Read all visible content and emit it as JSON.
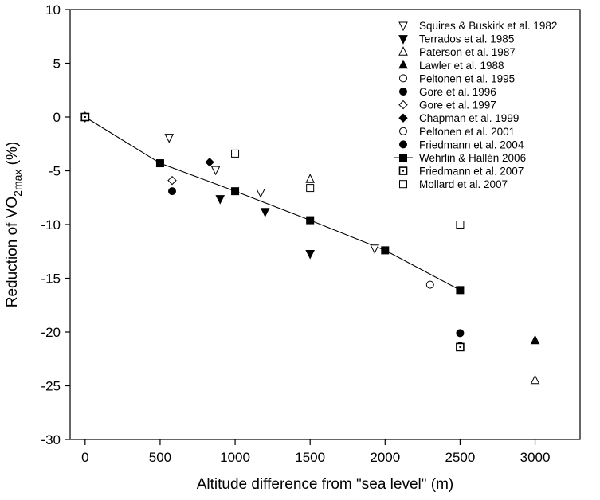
{
  "chart_data": {
    "type": "scatter",
    "title": "",
    "xlabel": "Altitude difference from \"sea level\" (m)",
    "ylabel_parts": [
      "Reduction of VO",
      "2max",
      " (%)"
    ],
    "xlim": [
      -100,
      3300
    ],
    "ylim": [
      -30,
      10
    ],
    "xticks": [
      0,
      500,
      1000,
      1500,
      2000,
      2500,
      3000
    ],
    "yticks": [
      10,
      5,
      0,
      -5,
      -10,
      -15,
      -20,
      -25,
      -30
    ],
    "grid": false,
    "legend_position": "top-right",
    "series": [
      {
        "name": "Squires & Buskirk et al. 1982",
        "marker": "triangle-down-open",
        "points": [
          [
            0,
            0
          ],
          [
            560,
            -1.9
          ],
          [
            870,
            -4.9
          ],
          [
            1170,
            -7.0
          ],
          [
            1930,
            -12.2
          ]
        ]
      },
      {
        "name": "Terrados et al. 1985",
        "marker": "triangle-down-filled",
        "points": [
          [
            900,
            -7.6
          ],
          [
            1200,
            -8.8
          ],
          [
            1500,
            -12.7
          ]
        ]
      },
      {
        "name": "Paterson et al. 1987",
        "marker": "triangle-up-open",
        "points": [
          [
            0,
            0
          ],
          [
            1500,
            -5.8
          ],
          [
            3000,
            -24.5
          ]
        ]
      },
      {
        "name": "Lawler et al. 1988",
        "marker": "triangle-up-filled",
        "points": [
          [
            3000,
            -20.8
          ]
        ]
      },
      {
        "name": "Peltonen et al. 1995",
        "marker": "circle-open",
        "points": [
          [
            0,
            0
          ],
          [
            2300,
            -15.6
          ]
        ]
      },
      {
        "name": "Gore et al. 1996",
        "marker": "circle-filled",
        "points": [
          [
            580,
            -6.9
          ],
          [
            2500,
            -20.1
          ]
        ]
      },
      {
        "name": "Gore et al. 1997",
        "marker": "diamond-open",
        "points": [
          [
            0,
            0
          ],
          [
            580,
            -5.9
          ]
        ]
      },
      {
        "name": "Chapman et al. 1999",
        "marker": "diamond-filled",
        "points": [
          [
            830,
            -4.2
          ]
        ]
      },
      {
        "name": "Peltonen et al. 2001",
        "marker": "circle-open",
        "points": [
          [
            0,
            0
          ]
        ]
      },
      {
        "name": "Friedmann et al.  2004",
        "marker": "circle-filled",
        "points": [
          [
            2500,
            -21.3
          ]
        ]
      },
      {
        "name": "Wehrlin & Hallén 2006",
        "marker": "square-filled-line",
        "points": [
          [
            500,
            -4.3
          ],
          [
            1000,
            -6.9
          ],
          [
            1500,
            -9.6
          ],
          [
            2000,
            -12.4
          ],
          [
            2500,
            -16.1
          ]
        ],
        "line_points": [
          [
            0,
            0
          ],
          [
            500,
            -4.3
          ],
          [
            1000,
            -6.9
          ],
          [
            1500,
            -9.6
          ],
          [
            2000,
            -12.4
          ],
          [
            2500,
            -16.1
          ]
        ]
      },
      {
        "name": "Friedmann et al. 2007",
        "marker": "square-dotted",
        "points": [
          [
            0,
            0
          ],
          [
            2500,
            -21.4
          ]
        ]
      },
      {
        "name": "Mollard et al. 2007",
        "marker": "square-open",
        "points": [
          [
            1000,
            -3.4
          ],
          [
            1500,
            -6.6
          ],
          [
            2500,
            -10.0
          ]
        ]
      }
    ]
  }
}
